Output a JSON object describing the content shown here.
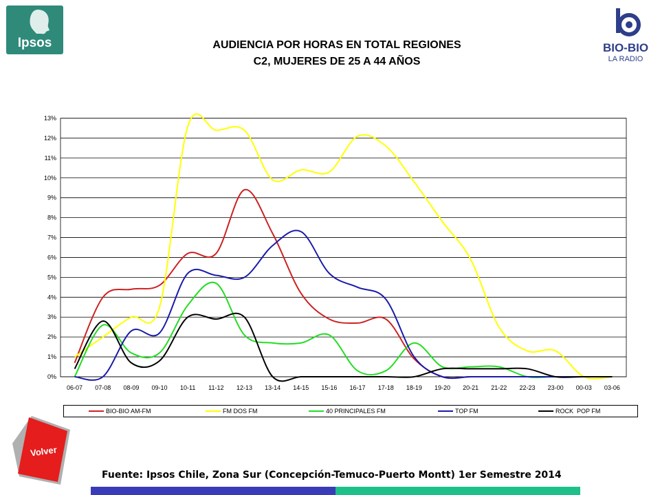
{
  "logos": {
    "ipsos": "Ipsos",
    "biobio_name": "BIO-BIO",
    "biobio_sub": "LA RADIO"
  },
  "title_line1": "AUDIENCIA POR HORAS EN TOTAL REGIONES",
  "title_line2": "C2, MUJERES DE 25 A 44 AÑOS",
  "chart_data": {
    "type": "line",
    "title": "AUDIENCIA POR HORAS EN TOTAL REGIONES C2, MUJERES DE 25 A 44 AÑOS",
    "xlabel": "",
    "ylabel": "",
    "ylim": [
      0,
      13
    ],
    "y_ticks": [
      "0%",
      "1%",
      "2%",
      "3%",
      "4%",
      "5%",
      "6%",
      "7%",
      "8%",
      "9%",
      "10%",
      "11%",
      "12%",
      "13%"
    ],
    "grid": "horizontal",
    "legend_position": "bottom",
    "categories": [
      "06-07",
      "07-08",
      "08-09",
      "09-10",
      "10-11",
      "11-12",
      "12-13",
      "13-14",
      "14-15",
      "15-16",
      "16-17",
      "17-18",
      "18-19",
      "19-20",
      "20-21",
      "21-22",
      "22-23",
      "23-00",
      "00-03",
      "03-06"
    ],
    "series": [
      {
        "name": "BIO-BIO AM-FM",
        "color": "#cc2222",
        "values": [
          0.7,
          4.0,
          4.4,
          4.6,
          6.2,
          6.2,
          9.4,
          7.2,
          4.2,
          2.9,
          2.7,
          2.9,
          0.9,
          0,
          0,
          0,
          0,
          0,
          0,
          0
        ]
      },
      {
        "name": "FM DOS FM",
        "color": "#ffff00",
        "values": [
          1.0,
          2.0,
          3.0,
          3.5,
          12.6,
          12.4,
          12.4,
          9.9,
          10.4,
          10.3,
          12.1,
          11.6,
          9.8,
          7.8,
          5.9,
          2.5,
          1.3,
          1.3,
          0,
          0
        ]
      },
      {
        "name": "40 PRINCIPALES FM",
        "color": "#22dd22",
        "values": [
          0,
          2.6,
          1.2,
          1.2,
          3.6,
          4.7,
          2.1,
          1.7,
          1.7,
          2.1,
          0.3,
          0.3,
          1.7,
          0.5,
          0.5,
          0.5,
          0,
          0,
          0,
          0
        ]
      },
      {
        "name": "TOP FM",
        "color": "#1a1aaa",
        "values": [
          0,
          0,
          2.3,
          2.2,
          5.2,
          5.1,
          5.0,
          6.6,
          7.3,
          5.2,
          4.5,
          3.9,
          1.0,
          0,
          0,
          0,
          0,
          0,
          0,
          0
        ]
      },
      {
        "name": "ROCK  POP FM",
        "color": "#000000",
        "values": [
          0.4,
          2.8,
          0.7,
          0.8,
          3.0,
          2.9,
          3.0,
          0,
          0,
          0,
          0,
          0,
          0,
          0.4,
          0.4,
          0.4,
          0.4,
          0,
          0,
          0
        ]
      }
    ]
  },
  "volver_label": "Volver",
  "source": "Fuente: Ipsos Chile, Zona Sur (Concepción-Temuco-Puerto Montt) 1er Semestre 2014"
}
